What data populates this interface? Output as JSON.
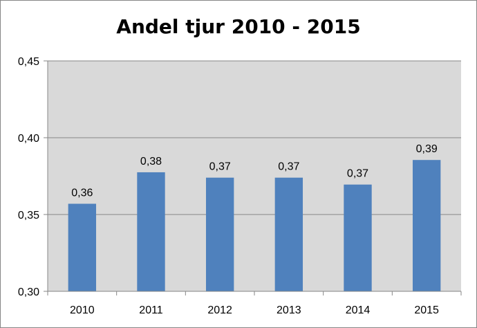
{
  "chart_data": {
    "type": "bar",
    "title": "Andel tjur 2010 - 2015",
    "xlabel": "",
    "ylabel": "",
    "categories": [
      "2010",
      "2011",
      "2012",
      "2013",
      "2014",
      "2015"
    ],
    "values": [
      0.357,
      0.3775,
      0.374,
      0.374,
      0.3695,
      0.3855
    ],
    "data_labels": [
      "0,36",
      "0,38",
      "0,37",
      "0,37",
      "0,37",
      "0,39"
    ],
    "ylim": [
      0.3,
      0.45
    ],
    "y_ticks": [
      0.3,
      0.35,
      0.4,
      0.45
    ],
    "y_tick_labels": [
      "0,30",
      "0,35",
      "0,40",
      "0,45"
    ],
    "grid": true,
    "legend": "none",
    "colors": {
      "bar": "#4f81bd",
      "plot_background": "#d9d9d9",
      "gridline": "#868686",
      "axis": "#868686"
    }
  }
}
